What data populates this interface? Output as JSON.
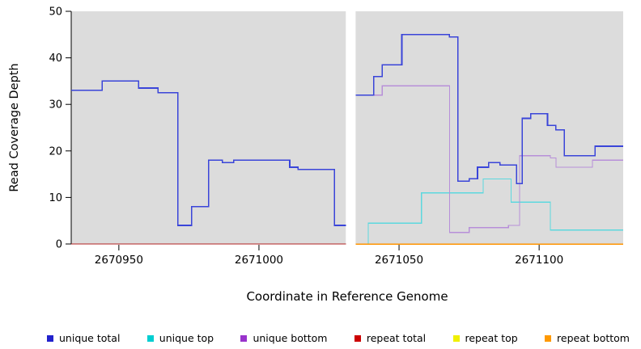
{
  "chart_data": {
    "type": "line",
    "title": "",
    "xlabel": "Coordinate in Reference Genome",
    "ylabel": "Read Coverage Depth",
    "xlim": [
      2670933,
      2671130
    ],
    "ylim": [
      0,
      50
    ],
    "x_ticks": [
      2670950,
      2671000,
      2671050,
      2671100
    ],
    "y_ticks": [
      0,
      10,
      20,
      30,
      40,
      50
    ],
    "panel_color": "#dcdcdc",
    "gap_region": {
      "from": 2671031,
      "to": 2671034.5
    },
    "line_style": "step-after",
    "series": [
      {
        "name": "unique top",
        "color": "#5cd8de",
        "width": 1.3,
        "segments": [
          [
            [
              2670933,
              0
            ],
            [
              2671031,
              0
            ]
          ],
          [
            [
              2671034.5,
              0
            ],
            [
              2671039,
              4.5
            ],
            [
              2671058,
              11
            ],
            [
              2671080,
              14
            ],
            [
              2671090,
              9
            ],
            [
              2671104,
              3
            ],
            [
              2671130,
              3
            ]
          ]
        ]
      },
      {
        "name": "unique bottom",
        "color": "#b78fd9",
        "width": 1.3,
        "segments": [
          [
            [
              2670933,
              0
            ],
            [
              2671031,
              0
            ]
          ],
          [
            [
              2671034.5,
              32
            ],
            [
              2671044,
              34
            ],
            [
              2671068,
              2.5
            ],
            [
              2671075,
              3.5
            ],
            [
              2671089,
              4
            ],
            [
              2671093,
              19
            ],
            [
              2671104,
              18.5
            ],
            [
              2671106,
              16.5
            ],
            [
              2671119,
              18
            ],
            [
              2671130,
              18
            ]
          ]
        ]
      },
      {
        "name": "repeat top",
        "color": "#f2f200",
        "width": 1.3,
        "segments": [
          [
            [
              2670933,
              0
            ],
            [
              2671031,
              0
            ]
          ]
        ]
      },
      {
        "name": "repeat total",
        "color": "#b22222",
        "width": 1.3,
        "segments": [
          [
            [
              2670933,
              0
            ],
            [
              2671031,
              0
            ]
          ]
        ]
      },
      {
        "name": "repeat bottom",
        "color": "#ff9400",
        "width": 1.5,
        "segments": [
          [
            [
              2671034.5,
              0
            ],
            [
              2671130,
              0
            ]
          ]
        ]
      },
      {
        "name": "unique total",
        "color": "#3a45d9",
        "width": 1.6,
        "segments": [
          [
            [
              2670933,
              33
            ],
            [
              2670944,
              35
            ],
            [
              2670957,
              33.5
            ],
            [
              2670964,
              32.5
            ],
            [
              2670971,
              4
            ],
            [
              2670976,
              8
            ],
            [
              2670982,
              18
            ],
            [
              2670987,
              17.5
            ],
            [
              2670991,
              18
            ],
            [
              2671011,
              16.5
            ],
            [
              2671014,
              16
            ],
            [
              2671027,
              4
            ],
            [
              2671031,
              4
            ]
          ],
          [
            [
              2671034.5,
              32
            ],
            [
              2671041,
              36
            ],
            [
              2671044,
              38.5
            ],
            [
              2671051,
              45
            ],
            [
              2671068,
              44.5
            ],
            [
              2671071,
              13.5
            ],
            [
              2671075,
              14
            ],
            [
              2671078,
              16.5
            ],
            [
              2671082,
              17.5
            ],
            [
              2671086,
              17
            ],
            [
              2671092,
              13
            ],
            [
              2671094,
              27
            ],
            [
              2671097,
              28
            ],
            [
              2671103,
              25.5
            ],
            [
              2671106,
              24.5
            ],
            [
              2671109,
              19
            ],
            [
              2671120,
              21
            ],
            [
              2671130,
              21
            ]
          ]
        ]
      }
    ]
  },
  "legend": {
    "items": [
      {
        "label": "unique total",
        "color": "#2222cc"
      },
      {
        "label": "unique top",
        "color": "#00ced1"
      },
      {
        "label": "unique bottom",
        "color": "#9933cc"
      },
      {
        "label": "repeat total",
        "color": "#cc0000"
      },
      {
        "label": "repeat top",
        "color": "#f0f000"
      },
      {
        "label": "repeat bottom",
        "color": "#ff9900"
      }
    ]
  }
}
